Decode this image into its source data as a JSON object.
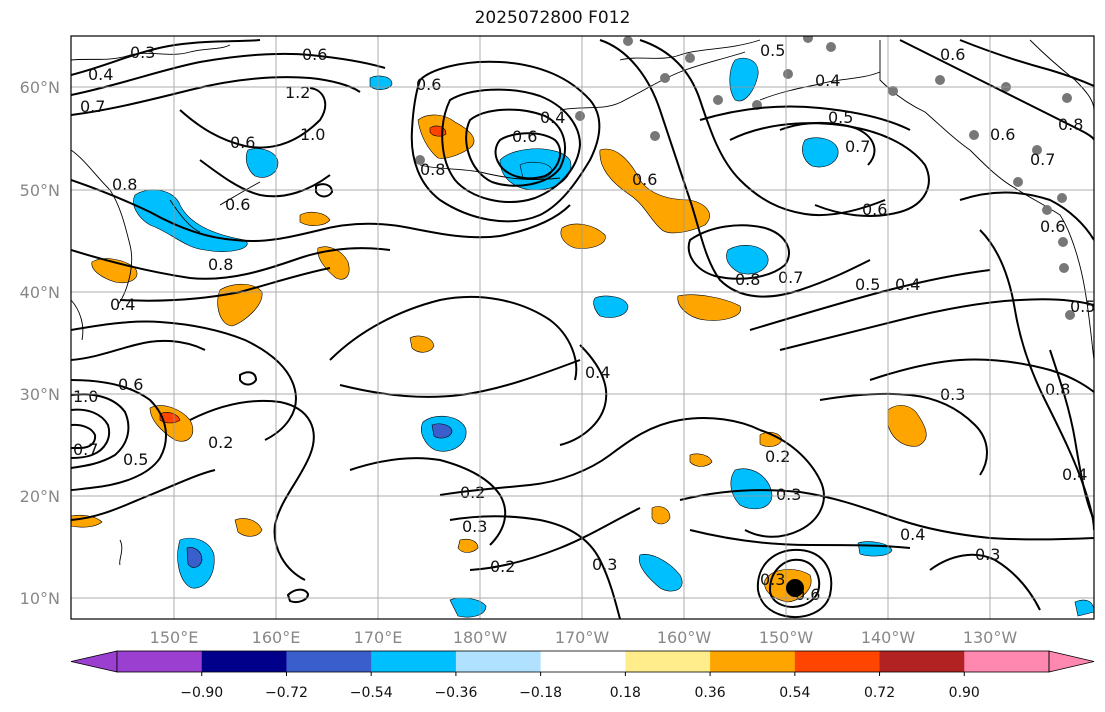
{
  "title": "2025072800 F012",
  "chart_data": {
    "type": "map",
    "lat_labels": [
      "60°N",
      "50°N",
      "40°N",
      "30°N",
      "20°N",
      "10°N"
    ],
    "lon_labels": [
      "150°E",
      "160°E",
      "170°E",
      "180°W",
      "170°W",
      "160°W",
      "150°W",
      "140°W",
      "130°W"
    ],
    "colorbar": {
      "ticks": [
        "−0.90",
        "−0.72",
        "−0.54",
        "−0.36",
        "−0.18",
        "0.18",
        "0.36",
        "0.54",
        "0.72",
        "0.90"
      ],
      "colors": [
        "#9a3fd0",
        "#00008b",
        "#3a5fcd",
        "#00bfff",
        "#b0e2ff",
        "#ffffff",
        "#ffec8b",
        "#ffa500",
        "#ff4500",
        "#b22222",
        "#ff88b0"
      ],
      "extend": "both"
    },
    "contour_labels": [
      "0.2",
      "0.3",
      "0.4",
      "0.5",
      "0.6",
      "0.7",
      "0.8",
      "1.0",
      "1.2"
    ],
    "gridlines": true
  }
}
